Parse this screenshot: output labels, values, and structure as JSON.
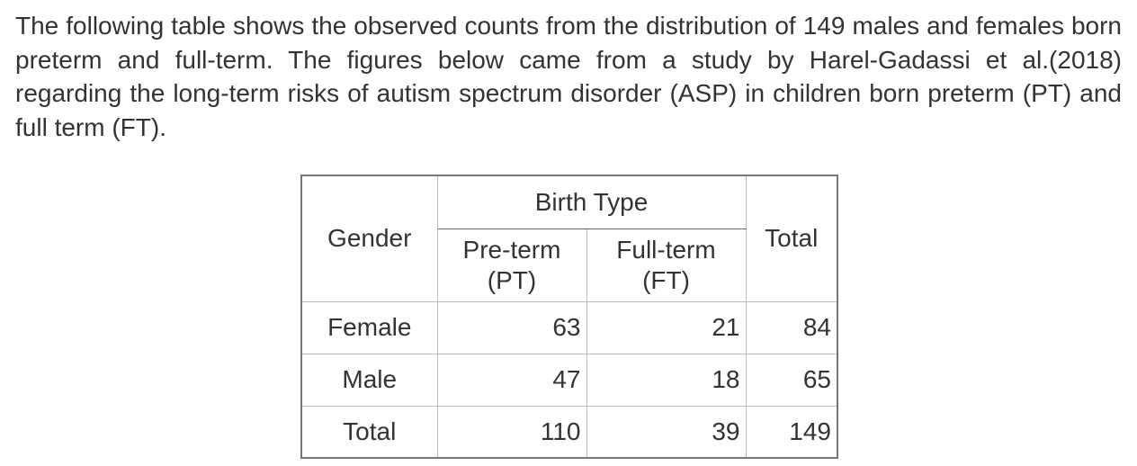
{
  "paragraph": "The following table shows the observed counts from the distribution of 149 males and females born preterm and full-term. The figures below came from a study by Harel-Gadassi et al.(2018) regarding the long-term risks of autism spectrum disorder (ASP) in children born preterm (PT) and full term (FT).",
  "table": {
    "row_header": "Gender",
    "group_header": "Birth Type",
    "group_columns": [
      "Pre-term (PT)",
      "Full-term (FT)"
    ],
    "total_header": "Total",
    "rows": [
      [
        "Female",
        63,
        21,
        84
      ],
      [
        "Male",
        47,
        18,
        65
      ],
      [
        "Total",
        110,
        39,
        149
      ]
    ]
  }
}
